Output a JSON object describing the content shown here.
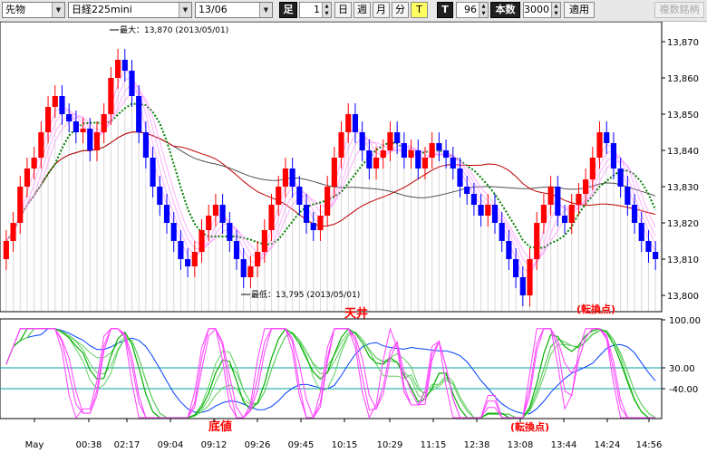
{
  "toolbar": {
    "type_select": "先物",
    "index_select": "日経225mini",
    "month_select": "13/06",
    "ashi_label": "足",
    "ashi_value": "1",
    "btn_day": "日",
    "btn_week": "週",
    "btn_month": "月",
    "btn_minute": "分",
    "btn_tick": "T",
    "btn_T2": "T",
    "count_value": "96",
    "bars_label": "本数",
    "bars_value": "3000",
    "apply_label": "適用",
    "multi_label": "複数銘柄"
  },
  "annotations": {
    "max_label": "最大：13,870 (2013/05/01)",
    "min_label": "最低：13,795 (2013/05/01)",
    "top_label": "天井",
    "bottom_label": "底値",
    "turn_top_label": "(転換点)",
    "turn_bottom_label": "(転換点)"
  },
  "colors": {
    "candle_up": "#ff0000",
    "candle_down": "#0000ff",
    "green_ma": "#008000",
    "red_ma": "#c00000",
    "gray_ma": "#505050",
    "cloud": "#80e0e0",
    "stoch_pink": "#ff40ff",
    "stoch_green": "#00b000",
    "stoch_blue": "#0040ff",
    "level_line": "#00a0a0"
  },
  "chart_data": {
    "type": "candlestick",
    "price_ylim": [
      13795,
      13875
    ],
    "price_ticks": [
      "13,870",
      "13,860",
      "13,850",
      "13,840",
      "13,830",
      "13,820",
      "13,810",
      "13,800"
    ],
    "osc_ticks": [
      "100.00",
      "30.00",
      "-40.00"
    ],
    "x_ticks": [
      "May",
      "00:38",
      "02:17",
      "09:04",
      "09:12",
      "09:26",
      "09:45",
      "10:15",
      "10:29",
      "11:15",
      "12:38",
      "13:08",
      "13:44",
      "14:24",
      "14:56"
    ],
    "close": [
      13815,
      13820,
      13830,
      13835,
      13838,
      13845,
      13852,
      13855,
      13850,
      13848,
      13845,
      13846,
      13840,
      13845,
      13850,
      13860,
      13865,
      13862,
      13855,
      13845,
      13838,
      13830,
      13825,
      13820,
      13815,
      13810,
      13808,
      13812,
      13818,
      13822,
      13825,
      13820,
      13815,
      13810,
      13805,
      13808,
      13812,
      13818,
      13825,
      13830,
      13835,
      13830,
      13825,
      13820,
      13818,
      13822,
      13830,
      13838,
      13845,
      13850,
      13845,
      13840,
      13835,
      13838,
      13840,
      13845,
      13842,
      13838,
      13840,
      13835,
      13838,
      13842,
      13840,
      13838,
      13835,
      13830,
      13828,
      13825,
      13822,
      13825,
      13820,
      13815,
      13810,
      13805,
      13800,
      13810,
      13820,
      13825,
      13830,
      13822,
      13820,
      13825,
      13828,
      13832,
      13838,
      13845,
      13842,
      13835,
      13830,
      13825,
      13820,
      13815,
      13812,
      13810
    ],
    "high": 13870,
    "low": 13795
  }
}
